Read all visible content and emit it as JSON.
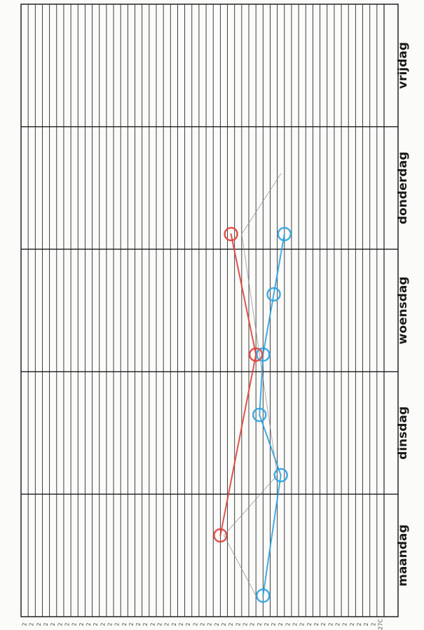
{
  "chart_data": {
    "type": "line",
    "categories": [
      "maandag",
      "dinsdag",
      "woensdag",
      "donderdag",
      "vrijdag"
    ],
    "tick_labels": [
      "2",
      "2",
      "2",
      "2",
      "2",
      "2",
      "2",
      "2",
      "2",
      "2",
      "2",
      "2",
      "2",
      "2",
      "2",
      "2",
      "2",
      "2",
      "2",
      "2",
      "2",
      "2",
      "2",
      "2",
      "2",
      "2",
      "2",
      "2",
      "2",
      "2",
      "2",
      "2",
      "2",
      "2",
      "2",
      "2",
      "2",
      "2",
      "2",
      "2",
      "2",
      "2",
      "2",
      "2",
      "2",
      "2",
      "2",
      "2",
      "2",
      "2",
      "27C"
    ],
    "grid": true,
    "orientation": "rotated-90",
    "series": [
      {
        "color": "#2ea3e0",
        "points": [
          {
            "day": 0.0,
            "level": 34.0
          },
          {
            "day": 1.0,
            "level": 36.5
          },
          {
            "day": 1.5,
            "level": 33.5
          },
          {
            "day": 2.0,
            "level": 34.0
          },
          {
            "day": 2.5,
            "level": 35.5
          },
          {
            "day": 3.0,
            "level": 37.0
          }
        ]
      },
      {
        "color": "#e0413a",
        "points": [
          {
            "day": 0.5,
            "level": 28.0
          },
          {
            "day": 2.0,
            "level": 33.0
          },
          {
            "day": 3.0,
            "level": 29.5
          }
        ]
      },
      {
        "color": "#8a8a8a",
        "points": [
          {
            "day": 0.0,
            "level": 33.0
          },
          {
            "day": 0.5,
            "level": 28.5
          },
          {
            "day": 1.0,
            "level": 36.0
          },
          {
            "day": 2.0,
            "level": 33.5
          },
          {
            "day": 3.0,
            "level": 31.0
          },
          {
            "day": 3.5,
            "level": 36.5
          }
        ]
      }
    ]
  }
}
